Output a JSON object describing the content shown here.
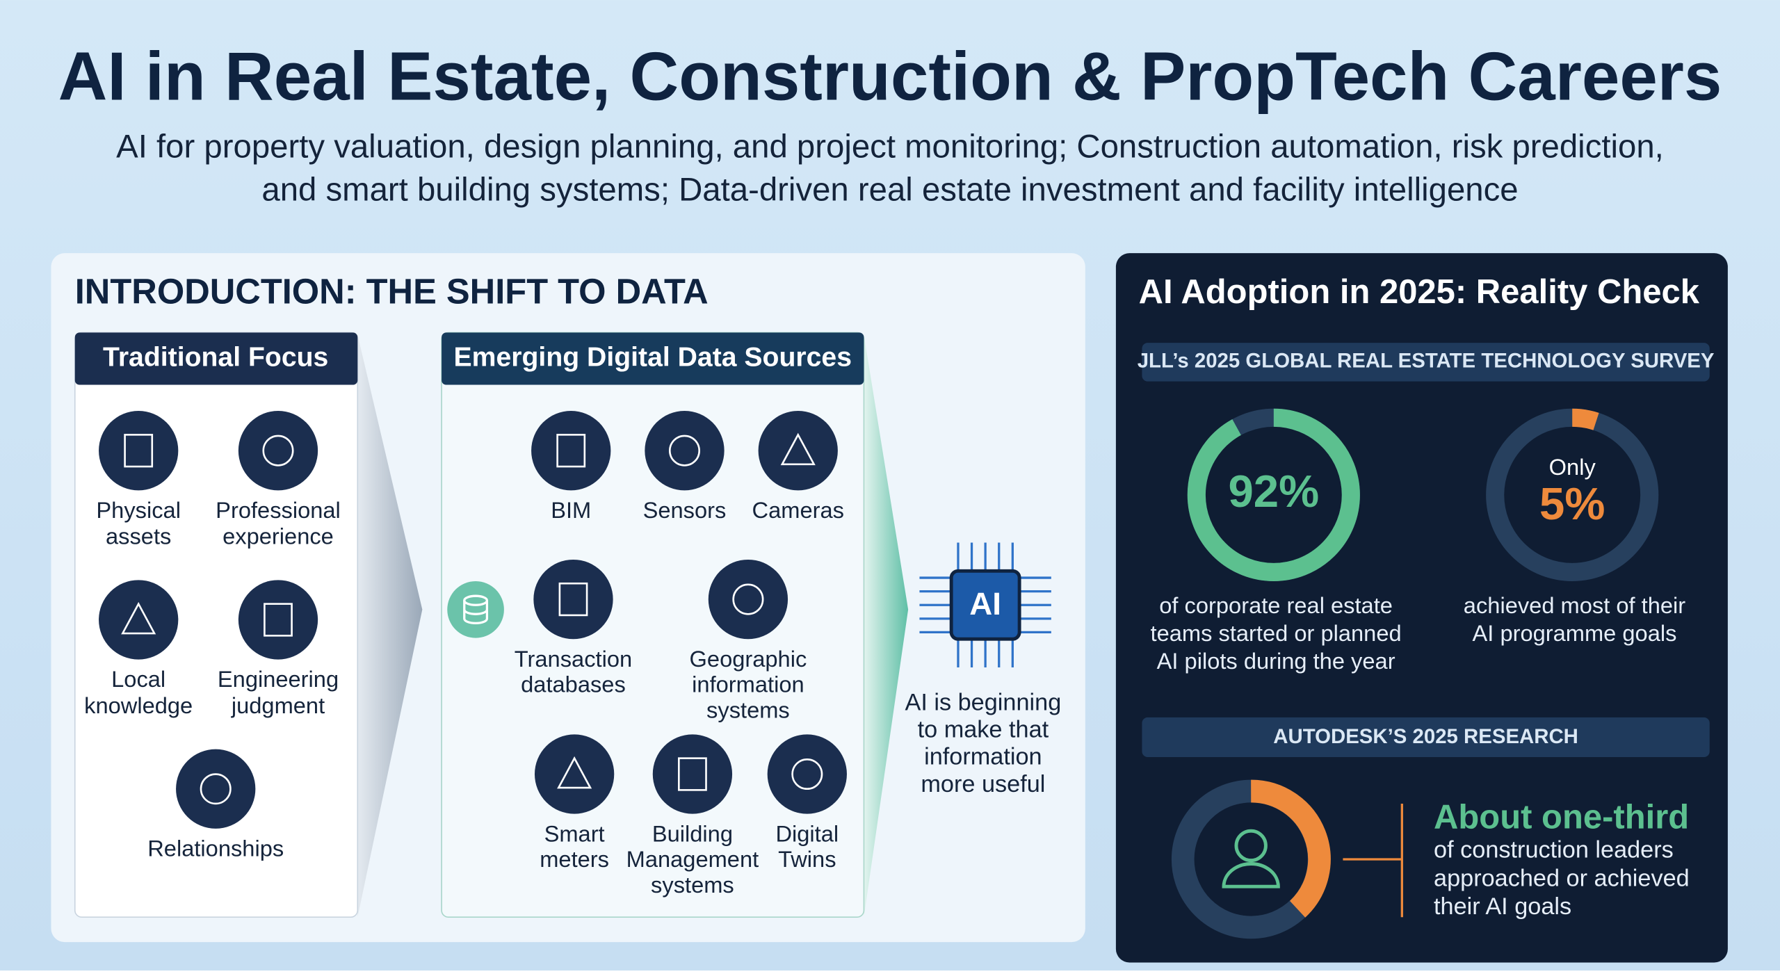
{
  "header": {
    "title": "AI in Real Estate, Construction & PropTech Careers",
    "subtitle_lines": [
      "AI for property valuation, design planning, and project monitoring; Construction automation, risk prediction,",
      "and smart building systems;  Data-driven real estate investment and facility intelligence"
    ]
  },
  "intro": {
    "title": "INTRODUCTION: THE SHIFT TO DATA",
    "traditional": {
      "title": "Traditional Focus",
      "items": [
        {
          "lines": [
            "Physical",
            "assets"
          ]
        },
        {
          "lines": [
            "Professional",
            "experience"
          ]
        },
        {
          "lines": [
            "Local",
            "knowledge"
          ]
        },
        {
          "lines": [
            "Engineering",
            "judgment"
          ]
        },
        {
          "lines": [
            "Relationships"
          ]
        }
      ]
    },
    "emerging": {
      "title": "Emerging Digital Data Sources",
      "items": [
        {
          "lines": [
            "BIM"
          ]
        },
        {
          "lines": [
            "Sensors"
          ]
        },
        {
          "lines": [
            "Cameras"
          ]
        },
        {
          "lines": [
            "Transaction",
            "databases"
          ]
        },
        {
          "lines": [
            "Geographic",
            "information",
            "systems"
          ]
        },
        {
          "lines": [
            "Smart",
            "meters"
          ]
        },
        {
          "lines": [
            "Building",
            "Management",
            "systems"
          ]
        },
        {
          "lines": [
            "Digital",
            "Twins"
          ]
        }
      ]
    },
    "ai_chip": "AI",
    "ai_note_lines": [
      "AI is beginning",
      "to make that",
      "information",
      "more useful"
    ]
  },
  "adoption": {
    "title": "AI Adoption in 2025: Reality Check",
    "jll": {
      "title": "JLL’s 2025 GLOBAL REAL ESTATE TECHNOLOGY SURVEY",
      "stats": [
        {
          "value": 92,
          "label": "92%",
          "lines": [
            "of corporate real estate",
            "teams started or planned",
            "AI pilots during the year"
          ]
        },
        {
          "prefix": "Only",
          "value": 5,
          "label": "5%",
          "lines": [
            "achieved most of their",
            "AI programme goals"
          ]
        }
      ]
    },
    "autodesk": {
      "title": "AUTODESK’S 2025 RESEARCH",
      "headline": "About one-third",
      "lines": [
        "of construction leaders",
        "approached or achieved",
        "their AI goals"
      ]
    }
  }
}
